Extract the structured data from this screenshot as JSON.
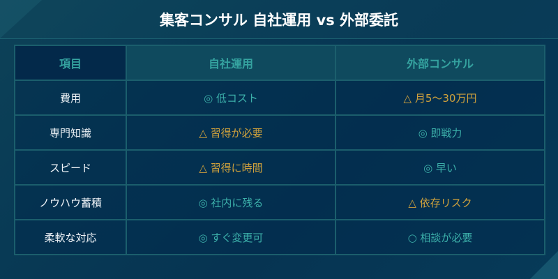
{
  "title": "集客コンサル 自社運用 vs 外部委託",
  "colors": {
    "good": "#3cb0aa",
    "warn": "#d0a23c",
    "header": "#35a3a0"
  },
  "table": {
    "headers": [
      "項目",
      "自社運用",
      "外部コンサル"
    ],
    "rows": [
      {
        "item": "費用",
        "in_house": "◎ 低コスト",
        "in_house_type": "good",
        "consultant": "△ 月5〜30万円",
        "consultant_type": "warn"
      },
      {
        "item": "専門知識",
        "in_house": "△ 習得が必要",
        "in_house_type": "warn",
        "consultant": "◎ 即戦力",
        "consultant_type": "good"
      },
      {
        "item": "スピード",
        "in_house": "△ 習得に時間",
        "in_house_type": "warn",
        "consultant": "◎ 早い",
        "consultant_type": "good"
      },
      {
        "item": "ノウハウ蓄積",
        "in_house": "◎ 社内に残る",
        "in_house_type": "good",
        "consultant": "△ 依存リスク",
        "consultant_type": "warn"
      },
      {
        "item": "柔軟な対応",
        "in_house": "◎ すぐ変更可",
        "in_house_type": "good",
        "consultant": "○ 相談が必要",
        "consultant_type": "good"
      }
    ]
  }
}
